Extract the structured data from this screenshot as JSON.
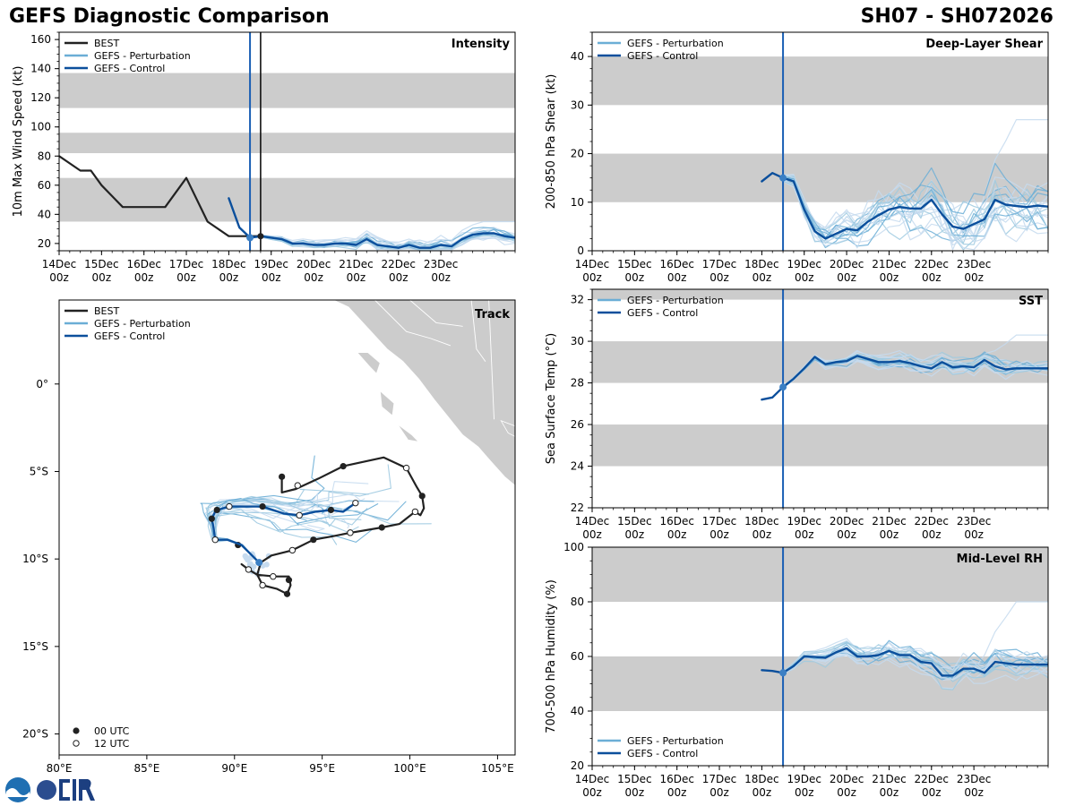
{
  "header": {
    "title_left": "GEFS Diagnostic Comparison",
    "title_right": "SH07 - SH072026"
  },
  "colors": {
    "best": "#222222",
    "pert_light": "#c6dbef",
    "pert_mid": "#9ecae1",
    "pert_dark": "#6baed6",
    "control": "#0b4f9c",
    "band": "#cccccc",
    "land": "#cccccc"
  },
  "time_ticks": {
    "days": [
      "14Dec",
      "15Dec",
      "16Dec",
      "17Dec",
      "18Dec",
      "19Dec",
      "20Dec",
      "21Dec",
      "22Dec",
      "23Dec"
    ],
    "hour": "00z"
  },
  "legend": {
    "best": "BEST",
    "pert": "GEFS - Perturbation",
    "ctrl": "GEFS - Control",
    "utc00": "00 UTC",
    "utc12": "12 UTC"
  },
  "chart_data": [
    {
      "id": "intensity",
      "type": "line",
      "title": "Intensity",
      "ylabel": "10m Max Wind Speed (kt)",
      "xlim": [
        0,
        10.75
      ],
      "ylim": [
        15,
        165
      ],
      "yticks": [
        20,
        40,
        60,
        80,
        100,
        120,
        140,
        160
      ],
      "bands": [
        [
          35,
          65
        ],
        [
          82,
          96
        ],
        [
          113,
          137
        ]
      ],
      "init_time": 4.5,
      "current_time": 4.75,
      "best": {
        "t": [
          0,
          0.5,
          0.75,
          1,
          1.5,
          2,
          2.5,
          3,
          3.5,
          4,
          4.25,
          4.5,
          4.75
        ],
        "v": [
          80,
          70,
          70,
          60,
          45,
          45,
          45,
          65,
          35,
          25,
          25,
          25,
          25
        ]
      },
      "control": {
        "t": [
          4,
          4.25,
          4.5,
          4.75,
          5,
          5.25,
          5.5,
          5.75,
          6,
          6.25,
          6.5,
          6.75,
          7,
          7.25,
          7.5,
          7.75,
          8,
          8.25,
          8.5,
          8.75,
          9,
          9.25,
          9.5,
          9.75,
          10,
          10.25,
          10.5,
          10.75
        ],
        "v": [
          51,
          31,
          24,
          25,
          24,
          23,
          20,
          20,
          19,
          19,
          20,
          20,
          19,
          23,
          19,
          18,
          17,
          19,
          17,
          17,
          19,
          18,
          23,
          26,
          27,
          27,
          25,
          24
        ]
      },
      "pert_spread": 3,
      "pert_max_end": 35
    },
    {
      "id": "shear",
      "type": "line",
      "title": "Deep-Layer Shear",
      "ylabel": "200-850 hPa Shear (kt)",
      "xlim": [
        0,
        10.75
      ],
      "ylim": [
        0,
        45
      ],
      "yticks": [
        0,
        10,
        20,
        30,
        40
      ],
      "bands": [
        [
          10,
          20
        ],
        [
          30,
          40
        ]
      ],
      "init_time": 4.5,
      "control": {
        "t": [
          4,
          4.25,
          4.5,
          4.75,
          5,
          5.25,
          5.5,
          5.75,
          6,
          6.25,
          6.5,
          6.75,
          7,
          7.25,
          7.5,
          7.75,
          8,
          8.25,
          8.5,
          8.75,
          9,
          9.25,
          9.5,
          9.75,
          10,
          10.25,
          10.5,
          10.75
        ],
        "v": [
          14.3,
          16,
          15,
          14.3,
          8.5,
          4,
          2.5,
          3.5,
          4.5,
          4.2,
          6,
          7.3,
          8.5,
          9,
          8.7,
          8.7,
          10.5,
          7.5,
          5,
          4.5,
          5.5,
          6.5,
          10.5,
          9.5,
          9.2,
          9,
          9.3,
          9.1
        ]
      },
      "pert_spread": 5,
      "pert_max_end": 27
    },
    {
      "id": "sst",
      "type": "line",
      "title": "SST",
      "ylabel": "Sea Surface Temp (°C)",
      "xlim": [
        0,
        10.75
      ],
      "ylim": [
        22,
        32.5
      ],
      "yticks": [
        22,
        24,
        26,
        28,
        30,
        32
      ],
      "bands": [
        [
          24,
          26
        ],
        [
          28,
          30
        ],
        [
          32,
          34
        ]
      ],
      "init_time": 4.5,
      "control": {
        "t": [
          4,
          4.25,
          4.5,
          4.75,
          5,
          5.25,
          5.5,
          5.75,
          6,
          6.25,
          6.5,
          6.75,
          7,
          7.25,
          7.5,
          7.75,
          8,
          8.25,
          8.5,
          8.75,
          9,
          9.25,
          9.5,
          9.75,
          10,
          10.25,
          10.5,
          10.75
        ],
        "v": [
          27.2,
          27.3,
          27.8,
          28.2,
          28.7,
          29.25,
          28.9,
          29,
          29.05,
          29.3,
          29.15,
          29,
          29,
          29.05,
          28.95,
          28.8,
          28.7,
          29,
          28.75,
          28.8,
          28.75,
          29.1,
          28.8,
          28.65,
          28.7,
          28.7,
          28.7,
          28.7
        ]
      },
      "pert_spread": 0.3,
      "pert_max_end": 30.3
    },
    {
      "id": "rh",
      "type": "line",
      "title": "Mid-Level RH",
      "ylabel": "700-500 hPa Humidity (%)",
      "xlim": [
        0,
        10.75
      ],
      "ylim": [
        20,
        100
      ],
      "yticks": [
        20,
        40,
        60,
        80,
        100
      ],
      "bands": [
        [
          40,
          60
        ],
        [
          80,
          100
        ]
      ],
      "init_time": 4.5,
      "control": {
        "t": [
          4,
          4.25,
          4.5,
          4.75,
          5,
          5.25,
          5.5,
          5.75,
          6,
          6.25,
          6.5,
          6.75,
          7,
          7.25,
          7.5,
          7.75,
          8,
          8.25,
          8.5,
          8.75,
          9,
          9.25,
          9.5,
          9.75,
          10,
          10.25,
          10.5,
          10.75
        ],
        "v": [
          55,
          54.7,
          54,
          56.5,
          60,
          59.8,
          59.5,
          61.5,
          63,
          60,
          60,
          60.5,
          62,
          60.5,
          60.5,
          58,
          57.5,
          53,
          53,
          55.5,
          55.5,
          54,
          58,
          57.5,
          57,
          57,
          57,
          57
        ]
      },
      "pert_spread": 4,
      "pert_max_end": 80
    }
  ],
  "track": {
    "title": "Track",
    "lon_range": [
      80,
      106
    ],
    "lat_range": [
      -21.2,
      4.8
    ],
    "lon_ticks": [
      80,
      85,
      90,
      95,
      100,
      105
    ],
    "lon_labels": [
      "80°E",
      "85°E",
      "90°E",
      "95°E",
      "100°E",
      "105°E"
    ],
    "lat_ticks": [
      0,
      -5,
      -10,
      -15,
      -20
    ],
    "lat_labels": [
      "0°",
      "5°S",
      "10°S",
      "15°S",
      "20°S"
    ],
    "best": [
      [
        92.7,
        -5.3
      ],
      [
        92.7,
        -6.2
      ],
      [
        93.5,
        -6.0
      ],
      [
        94.8,
        -5.4
      ],
      [
        96.2,
        -4.7
      ],
      [
        98.5,
        -4.2
      ],
      [
        99.8,
        -4.8
      ],
      [
        100.4,
        -5.9
      ],
      [
        100.7,
        -6.4
      ],
      [
        100.8,
        -7.1
      ],
      [
        100.6,
        -7.5
      ],
      [
        100.3,
        -7.3
      ],
      [
        99.4,
        -8.0
      ],
      [
        98.4,
        -8.2
      ],
      [
        96.6,
        -8.5
      ],
      [
        95.6,
        -8.7
      ],
      [
        94.5,
        -8.9
      ],
      [
        93.3,
        -9.5
      ],
      [
        92.1,
        -9.8
      ],
      [
        91.5,
        -10.2
      ],
      [
        91.3,
        -10.9
      ],
      [
        92.3,
        -11.0
      ],
      [
        93.1,
        -11.0
      ],
      [
        93.2,
        -11.5
      ],
      [
        93.0,
        -12.0
      ],
      [
        92.4,
        -11.7
      ],
      [
        91.6,
        -11.5
      ],
      [
        91.3,
        -10.9
      ],
      [
        90.8,
        -10.6
      ],
      [
        90.4,
        -10.3
      ]
    ],
    "best_00": [
      [
        92.7,
        -5.3
      ],
      [
        96.2,
        -4.7
      ],
      [
        100.7,
        -6.4
      ],
      [
        98.4,
        -8.2
      ],
      [
        94.5,
        -8.9
      ],
      [
        93.1,
        -11.2
      ],
      [
        93.0,
        -12.0
      ],
      [
        90.2,
        -9.2
      ]
    ],
    "best_12": [
      [
        93.6,
        -5.8
      ],
      [
        99.8,
        -4.8
      ],
      [
        100.3,
        -7.3
      ],
      [
        96.6,
        -8.5
      ],
      [
        93.3,
        -9.5
      ],
      [
        92.2,
        -11.0
      ],
      [
        91.6,
        -11.5
      ],
      [
        90.8,
        -10.6
      ]
    ],
    "control": [
      [
        91.4,
        -10.2
      ],
      [
        90.9,
        -9.7
      ],
      [
        90.4,
        -9.2
      ],
      [
        89.6,
        -8.9
      ],
      [
        88.9,
        -8.9
      ],
      [
        88.8,
        -8.2
      ],
      [
        88.7,
        -7.7
      ],
      [
        88.9,
        -7.3
      ],
      [
        89.0,
        -7.2
      ],
      [
        89.7,
        -7.0
      ],
      [
        91.6,
        -7.0
      ],
      [
        92.8,
        -7.4
      ],
      [
        93.7,
        -7.5
      ],
      [
        94.6,
        -7.3
      ],
      [
        95.5,
        -7.2
      ],
      [
        96.2,
        -7.3
      ],
      [
        96.9,
        -6.8
      ]
    ],
    "control_00": [
      [
        89.0,
        -7.2
      ],
      [
        91.6,
        -7.0
      ],
      [
        95.5,
        -7.2
      ],
      [
        88.7,
        -7.7
      ]
    ],
    "control_12": [
      [
        89.7,
        -7.0
      ],
      [
        93.7,
        -7.5
      ],
      [
        96.9,
        -6.8
      ],
      [
        88.9,
        -8.9
      ]
    ],
    "land": [
      [
        [
          95.2,
          5.0
        ],
        [
          96.5,
          4.4
        ],
        [
          97.6,
          3.2
        ],
        [
          98.7,
          2.0
        ],
        [
          99.6,
          1.3
        ],
        [
          100.5,
          0.3
        ],
        [
          101.4,
          -0.9
        ],
        [
          102.2,
          -1.9
        ],
        [
          103.0,
          -2.9
        ],
        [
          103.9,
          -3.6
        ],
        [
          104.6,
          -4.4
        ],
        [
          105.4,
          -5.3
        ],
        [
          106.0,
          -5.8
        ],
        [
          106.0,
          5.0
        ]
      ],
      [
        [
          97.0,
          1.8
        ],
        [
          97.7,
          1.0
        ],
        [
          98.1,
          0.6
        ],
        [
          98.3,
          1.2
        ],
        [
          97.6,
          1.8
        ]
      ],
      [
        [
          98.3,
          -0.4
        ],
        [
          99.1,
          -1.1
        ],
        [
          99.0,
          -1.8
        ],
        [
          98.4,
          -1.3
        ]
      ],
      [
        [
          99.3,
          -2.3
        ],
        [
          100.1,
          -2.9
        ],
        [
          100.5,
          -3.3
        ],
        [
          99.9,
          -3.2
        ]
      ],
      [
        [
          105.2,
          -2.1
        ],
        [
          106.0,
          -2.4
        ],
        [
          106.0,
          -3.0
        ],
        [
          105.6,
          -2.8
        ]
      ]
    ]
  }
}
